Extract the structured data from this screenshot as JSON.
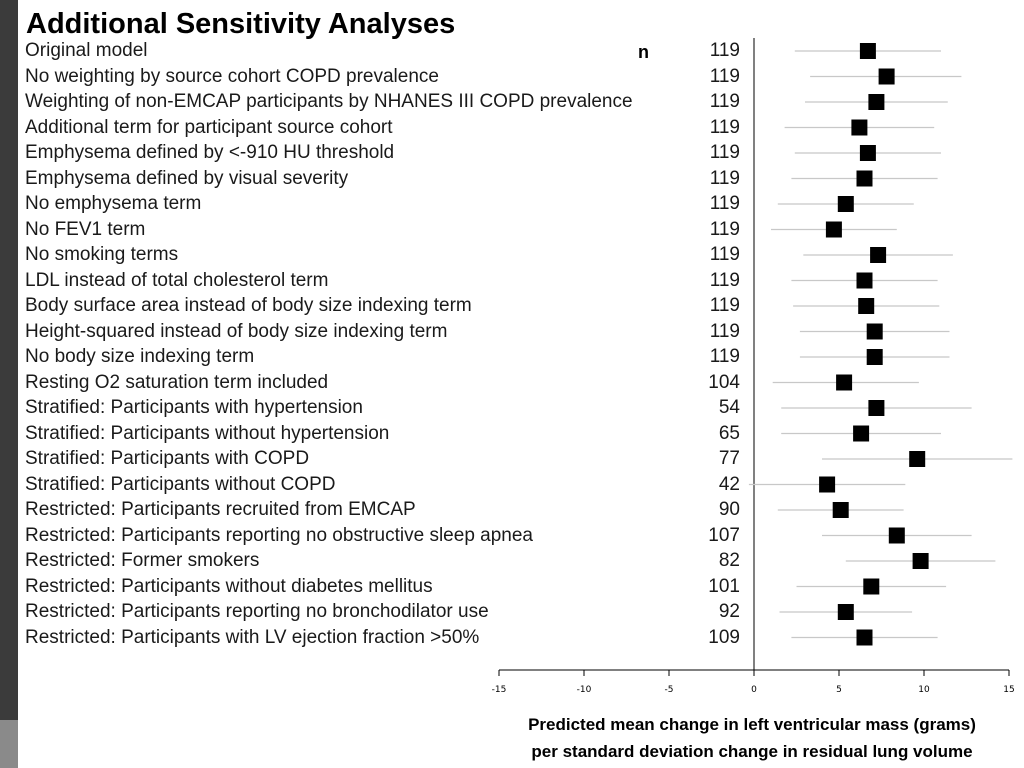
{
  "title": "Additional Sensitivity Analyses",
  "n_header": "n",
  "chart_data": {
    "type": "forest",
    "xlim": [
      -15,
      15
    ],
    "xticks": [
      -15,
      -10,
      -5,
      0,
      5,
      10,
      15
    ],
    "xlabel_line1": "Predicted mean change in left ventricular mass (grams)",
    "xlabel_line2": "per standard deviation change in residual lung volume",
    "rows": [
      {
        "label": "Original model",
        "n": "119",
        "est": 6.7,
        "lo": 2.4,
        "hi": 11.0
      },
      {
        "label": "No weighting by source cohort COPD prevalence",
        "n": "119",
        "est": 7.8,
        "lo": 3.3,
        "hi": 12.2
      },
      {
        "label": "Weighting of non-EMCAP participants by NHANES III COPD prevalence",
        "n": "119",
        "est": 7.2,
        "lo": 3.0,
        "hi": 11.4
      },
      {
        "label": "Additional term for participant source cohort",
        "n": "119",
        "est": 6.2,
        "lo": 1.8,
        "hi": 10.6
      },
      {
        "label": "Emphysema defined by <-910 HU threshold",
        "n": "119",
        "est": 6.7,
        "lo": 2.4,
        "hi": 11.0
      },
      {
        "label": "Emphysema defined by visual severity",
        "n": "119",
        "est": 6.5,
        "lo": 2.2,
        "hi": 10.8
      },
      {
        "label": "No emphysema term",
        "n": "119",
        "est": 5.4,
        "lo": 1.4,
        "hi": 9.4
      },
      {
        "label": "No FEV1 term",
        "n": "119",
        "est": 4.7,
        "lo": 1.0,
        "hi": 8.4
      },
      {
        "label": "No smoking terms",
        "n": "119",
        "est": 7.3,
        "lo": 2.9,
        "hi": 11.7
      },
      {
        "label": "LDL instead of total cholesterol term",
        "n": "119",
        "est": 6.5,
        "lo": 2.2,
        "hi": 10.8
      },
      {
        "label": "Body surface area instead of body size indexing term",
        "n": "119",
        "est": 6.6,
        "lo": 2.3,
        "hi": 10.9
      },
      {
        "label": "Height-squared instead of body size indexing term",
        "n": "119",
        "est": 7.1,
        "lo": 2.7,
        "hi": 11.5
      },
      {
        "label": "No body size indexing term",
        "n": "119",
        "est": 7.1,
        "lo": 2.7,
        "hi": 11.5
      },
      {
        "label": "Resting O2 saturation term included",
        "n": "104",
        "est": 5.3,
        "lo": 1.1,
        "hi": 9.7
      },
      {
        "label": "Stratified: Participants with hypertension",
        "n": "54",
        "est": 7.2,
        "lo": 1.6,
        "hi": 12.8
      },
      {
        "label": "Stratified: Participants without hypertension",
        "n": "65",
        "est": 6.3,
        "lo": 1.6,
        "hi": 11.0
      },
      {
        "label": "Stratified: Participants with COPD",
        "n": "77",
        "est": 9.6,
        "lo": 4.0,
        "hi": 15.2
      },
      {
        "label": "Stratified: Participants without COPD",
        "n": "42",
        "est": 4.3,
        "lo": -0.3,
        "hi": 8.9
      },
      {
        "label": "Restricted: Participants recruited from EMCAP",
        "n": "90",
        "est": 5.1,
        "lo": 1.4,
        "hi": 8.8
      },
      {
        "label": "Restricted: Participants reporting no obstructive sleep apnea",
        "n": "107",
        "est": 8.4,
        "lo": 4.0,
        "hi": 12.8
      },
      {
        "label": "Restricted: Former smokers",
        "n": "82",
        "est": 9.8,
        "lo": 5.4,
        "hi": 14.2
      },
      {
        "label": "Restricted: Participants without diabetes mellitus",
        "n": "101",
        "est": 6.9,
        "lo": 2.5,
        "hi": 11.3
      },
      {
        "label": "Restricted: Participants reporting no bronchodilator use",
        "n": "92",
        "est": 5.4,
        "lo": 1.5,
        "hi": 9.3
      },
      {
        "label": "Restricted: Participants with LV ejection fraction >50%",
        "n": "109",
        "est": 6.5,
        "lo": 2.2,
        "hi": 10.8
      }
    ]
  }
}
